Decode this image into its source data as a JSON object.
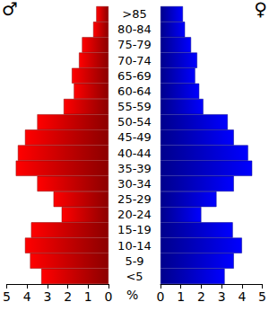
{
  "chart_data": {
    "type": "bar",
    "orientation": "horizontal",
    "categories": [
      "<5",
      "5-9",
      "10-14",
      "15-19",
      "20-24",
      "25-29",
      "30-34",
      "35-39",
      "40-44",
      "45-49",
      "50-54",
      "55-59",
      "60-64",
      "65-69",
      "70-74",
      "75-79",
      "80-84",
      ">85"
    ],
    "series": [
      {
        "name": "♂",
        "color": "#ff0000",
        "values": [
          3.3,
          3.85,
          4.1,
          3.8,
          2.3,
          2.7,
          3.5,
          4.55,
          4.45,
          4.1,
          3.5,
          2.2,
          1.7,
          1.8,
          1.45,
          1.3,
          0.75,
          0.6
        ]
      },
      {
        "name": "♀",
        "color": "#0000ff",
        "values": [
          3.15,
          3.6,
          4.0,
          3.55,
          2.0,
          2.75,
          3.6,
          4.5,
          4.3,
          3.6,
          3.3,
          2.1,
          1.9,
          1.7,
          1.8,
          1.5,
          1.2,
          1.1
        ]
      }
    ],
    "xlabel": "%",
    "xlim": [
      0,
      5
    ],
    "xticks": [
      0,
      1,
      2,
      3,
      4,
      5
    ],
    "grid": false
  }
}
